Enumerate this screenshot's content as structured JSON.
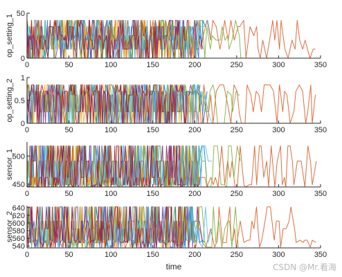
{
  "watermark": "CSDN @Mr.看海",
  "palette": [
    "#0072bd",
    "#d95319",
    "#edb120",
    "#7e2f8e",
    "#77ac30",
    "#4dbeee",
    "#a2142f"
  ],
  "chart_data": [
    {
      "type": "line",
      "ylabel": "op_setting_1",
      "xlabel": "",
      "xlim": [
        0,
        350
      ],
      "ylim": [
        0,
        50
      ],
      "xticks": [
        0,
        50,
        100,
        150,
        200,
        250,
        300,
        350
      ],
      "yticks": [
        0,
        50
      ],
      "levels": [
        0,
        10,
        20,
        25,
        35,
        42
      ],
      "dense_until": 205,
      "series": [
        {
          "color": "#0072bd",
          "x_end": 215
        },
        {
          "color": "#d95319",
          "x_end": 345
        },
        {
          "color": "#edb120",
          "x_end": 200
        },
        {
          "color": "#7e2f8e",
          "x_end": 210
        },
        {
          "color": "#77ac30",
          "x_end": 255
        },
        {
          "color": "#4dbeee",
          "x_end": 222
        },
        {
          "color": "#a2142f",
          "x_end": 190
        }
      ]
    },
    {
      "type": "line",
      "ylabel": "op_setting_2",
      "xlabel": "",
      "xlim": [
        0,
        350
      ],
      "ylim": [
        0,
        1
      ],
      "xticks": [
        0,
        50,
        100,
        150,
        200,
        250,
        300,
        350
      ],
      "yticks": [
        0,
        0.5,
        1
      ],
      "levels": [
        0,
        0.25,
        0.62,
        0.7,
        0.84
      ],
      "dense_until": 205,
      "series": [
        {
          "color": "#0072bd",
          "x_end": 215
        },
        {
          "color": "#d95319",
          "x_end": 345
        },
        {
          "color": "#edb120",
          "x_end": 200
        },
        {
          "color": "#7e2f8e",
          "x_end": 210
        },
        {
          "color": "#77ac30",
          "x_end": 255
        },
        {
          "color": "#4dbeee",
          "x_end": 222
        },
        {
          "color": "#a2142f",
          "x_end": 190
        }
      ]
    },
    {
      "type": "line",
      "ylabel": "sensor_1",
      "xlabel": "",
      "xlim": [
        0,
        350
      ],
      "ylim": [
        445,
        525
      ],
      "xticks": [
        0,
        50,
        100,
        150,
        200,
        250,
        300,
        350
      ],
      "yticks": [
        450,
        500
      ],
      "levels": [
        445,
        449,
        462,
        491,
        518
      ],
      "dense_until": 205,
      "series": [
        {
          "color": "#0072bd",
          "x_end": 215
        },
        {
          "color": "#d95319",
          "x_end": 345
        },
        {
          "color": "#edb120",
          "x_end": 200
        },
        {
          "color": "#7e2f8e",
          "x_end": 210
        },
        {
          "color": "#77ac30",
          "x_end": 255
        },
        {
          "color": "#4dbeee",
          "x_end": 222
        },
        {
          "color": "#a2142f",
          "x_end": 190
        }
      ]
    },
    {
      "type": "line",
      "ylabel": "sensor_2",
      "xlabel": "time",
      "xlim": [
        0,
        350
      ],
      "ylim": [
        535,
        645
      ],
      "xticks": [
        0,
        50,
        100,
        150,
        200,
        250,
        300,
        350
      ],
      "yticks": [
        540,
        560,
        580,
        600,
        620,
        640
      ],
      "levels": [
        537,
        549,
        555,
        585,
        605,
        642
      ],
      "dense_until": 205,
      "series": [
        {
          "color": "#0072bd",
          "x_end": 215
        },
        {
          "color": "#d95319",
          "x_end": 345
        },
        {
          "color": "#edb120",
          "x_end": 200
        },
        {
          "color": "#7e2f8e",
          "x_end": 210
        },
        {
          "color": "#77ac30",
          "x_end": 255
        },
        {
          "color": "#4dbeee",
          "x_end": 222
        },
        {
          "color": "#a2142f",
          "x_end": 190
        }
      ]
    }
  ]
}
